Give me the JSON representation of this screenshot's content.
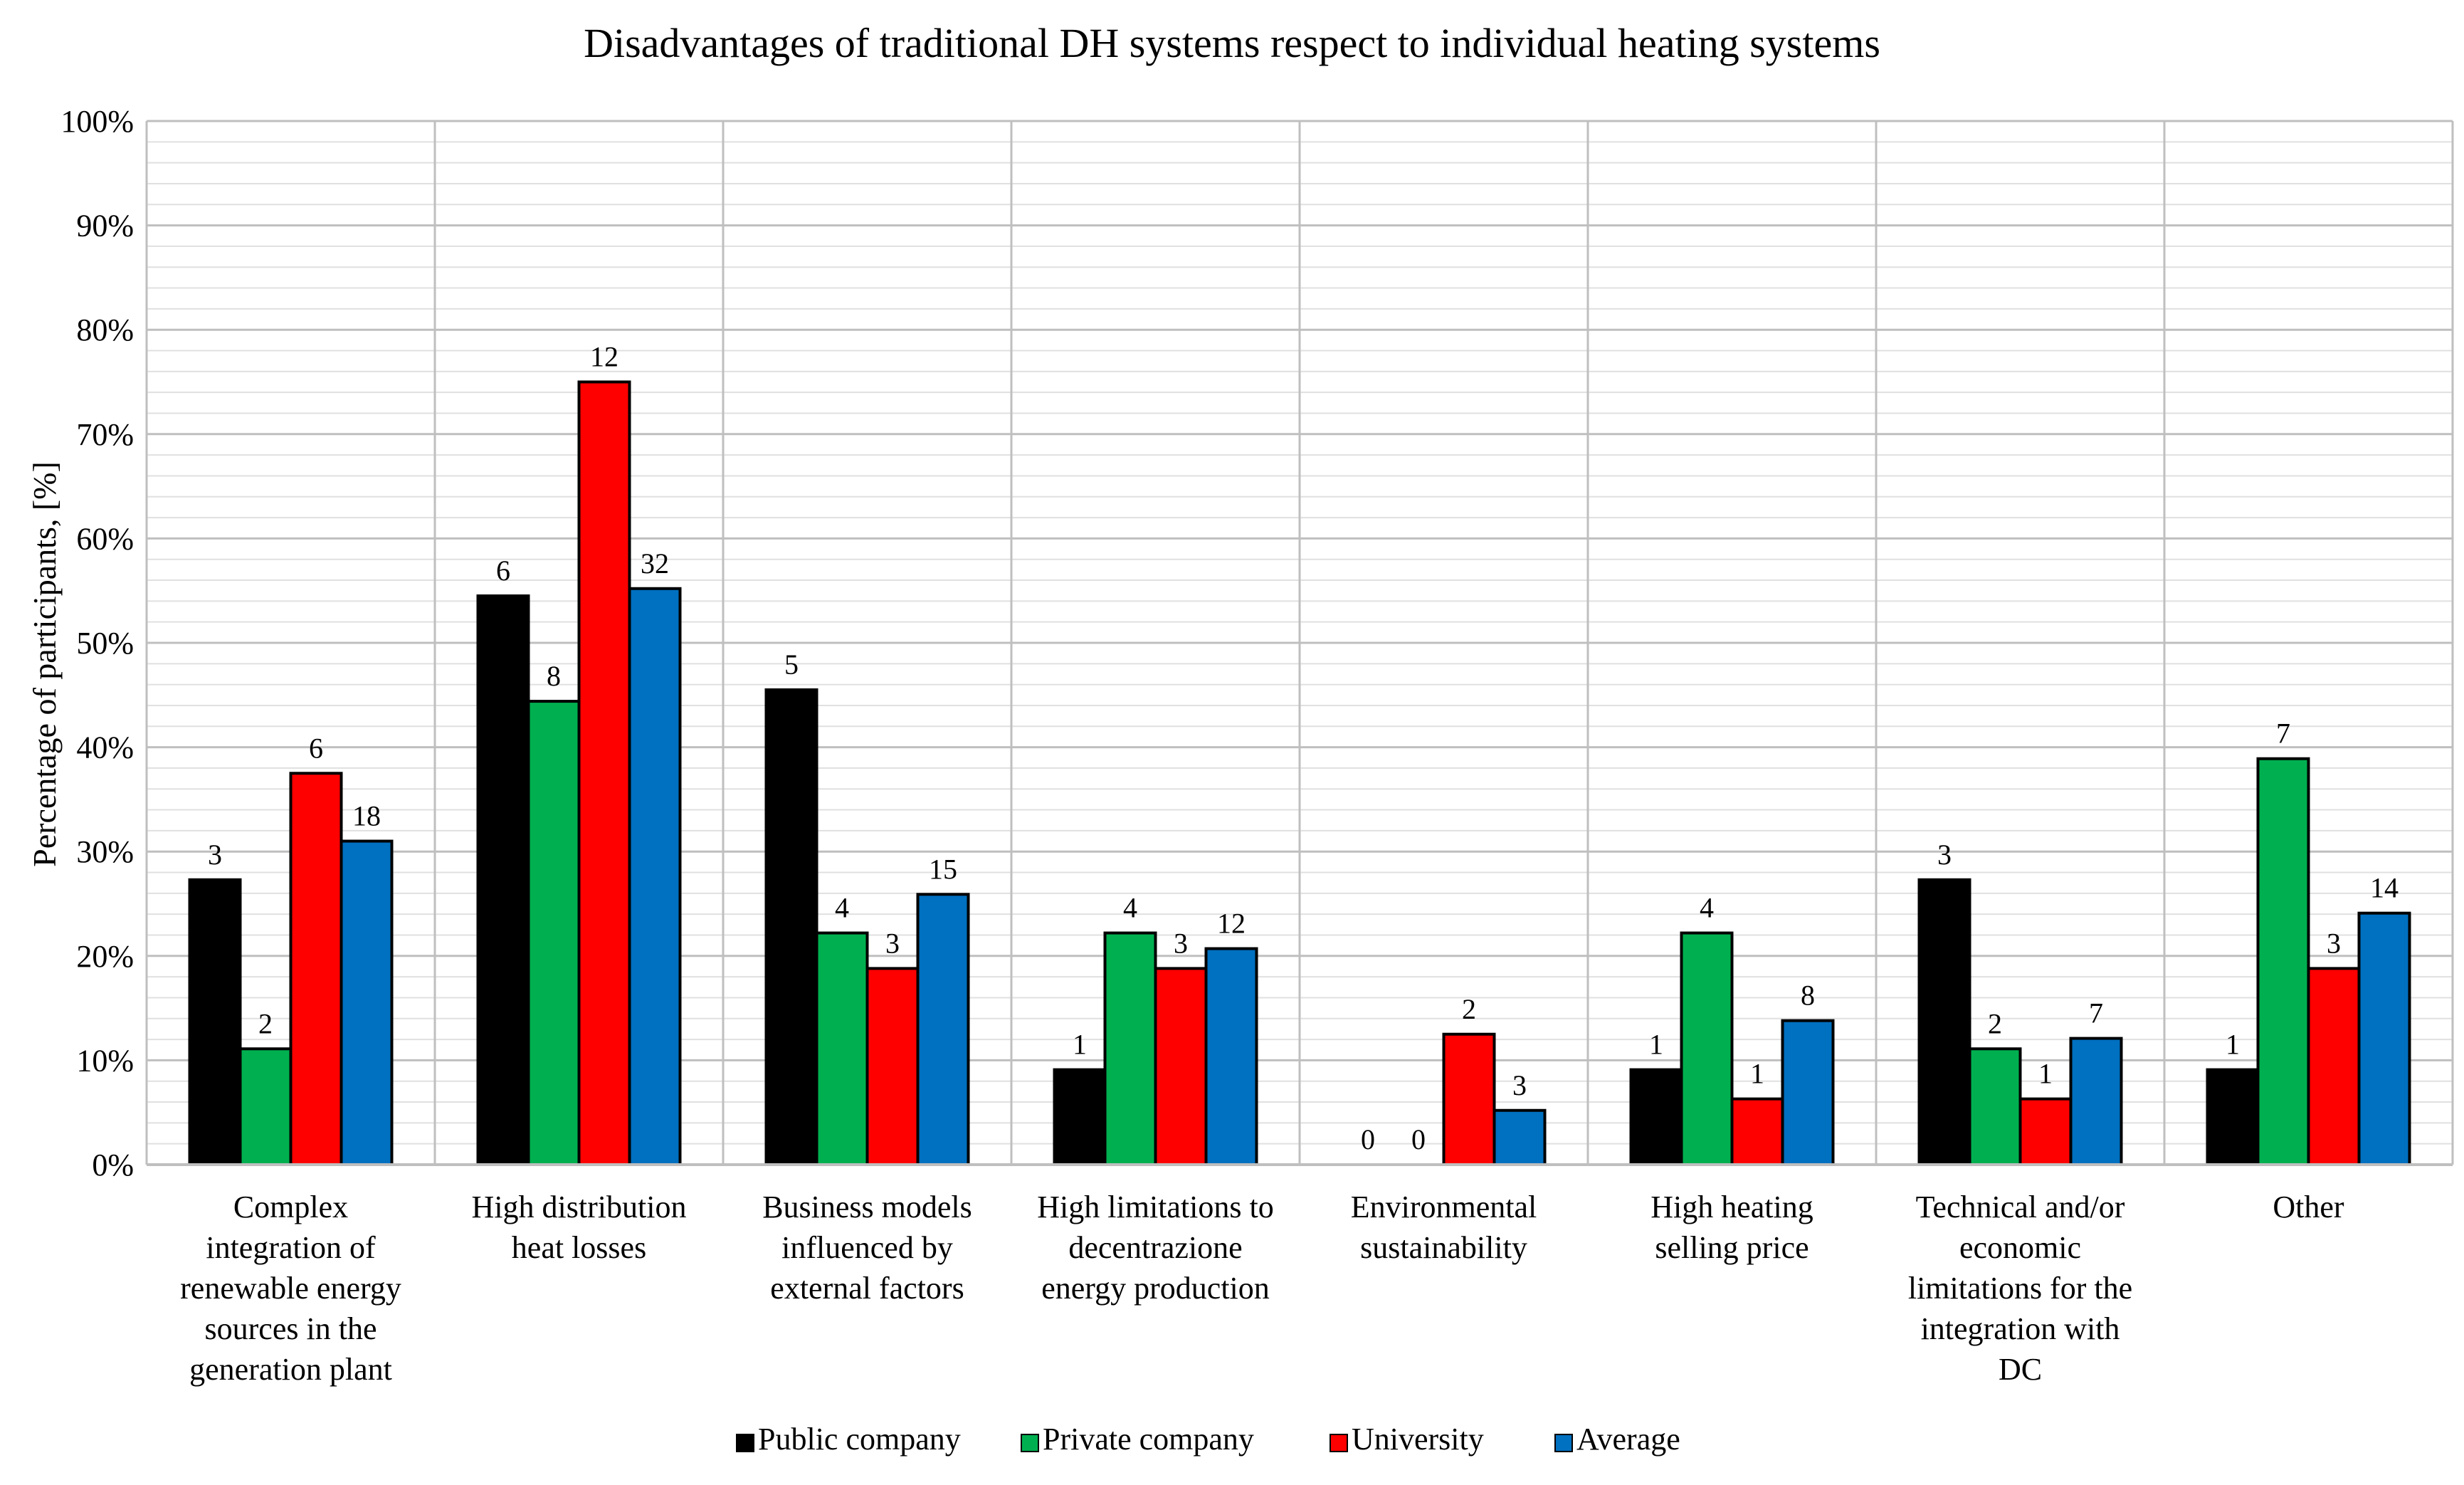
{
  "chart_data": {
    "type": "bar",
    "title": "Disadvantages of traditional DH systems respect to individual heating systems",
    "xlabel": "",
    "ylabel": "Percentage of participants, [%]",
    "ylim": [
      0,
      100
    ],
    "yticks": [
      "0%",
      "10%",
      "20%",
      "30%",
      "40%",
      "50%",
      "60%",
      "70%",
      "80%",
      "90%",
      "100%"
    ],
    "grid": true,
    "legend_position": "bottom",
    "categories": [
      [
        "Complex",
        "integration of",
        "renewable energy",
        "sources in the",
        "generation plant"
      ],
      [
        "High distribution",
        "heat losses"
      ],
      [
        "Business models",
        "influenced by",
        "external factors"
      ],
      [
        "High limitations to",
        "decentrazione",
        "energy production"
      ],
      [
        "Environmental",
        "sustainability"
      ],
      [
        "High heating",
        "selling price"
      ],
      [
        "Technical and/or",
        "economic",
        "limitations for the",
        "integration with",
        "DC"
      ],
      [
        "Other"
      ]
    ],
    "series": [
      {
        "name": "Public company",
        "color": "#000000",
        "values": [
          27.3,
          54.5,
          45.5,
          9.1,
          0,
          9.1,
          27.3,
          9.1
        ],
        "labels": [
          "3",
          "6",
          "5",
          "1",
          "0",
          "1",
          "3",
          "1"
        ]
      },
      {
        "name": "Private company",
        "color": "#00b050",
        "values": [
          11.1,
          44.4,
          22.2,
          22.2,
          0,
          22.2,
          11.1,
          38.9
        ],
        "labels": [
          "2",
          "8",
          "4",
          "4",
          "0",
          "4",
          "2",
          "7"
        ]
      },
      {
        "name": "University",
        "color": "#ff0000",
        "values": [
          37.5,
          75.0,
          18.8,
          18.8,
          12.5,
          6.3,
          6.3,
          18.8
        ],
        "labels": [
          "6",
          "12",
          "3",
          "3",
          "2",
          "1",
          "1",
          "3"
        ]
      },
      {
        "name": "Average",
        "color": "#0070c0",
        "values": [
          31.0,
          55.2,
          25.9,
          20.7,
          5.2,
          13.8,
          12.1,
          24.1
        ],
        "labels": [
          "18",
          "32",
          "15",
          "12",
          "3",
          "8",
          "7",
          "14"
        ]
      }
    ]
  }
}
